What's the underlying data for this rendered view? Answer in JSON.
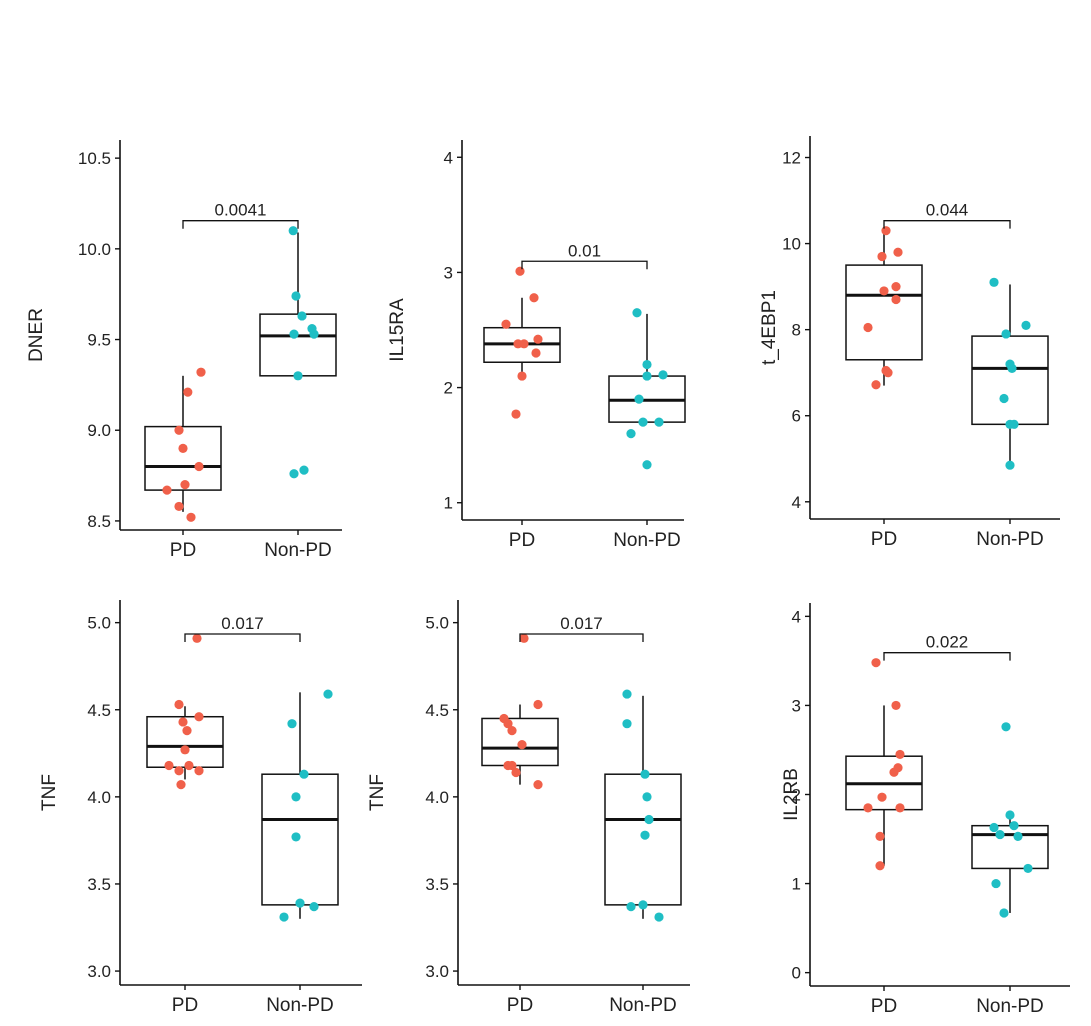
{
  "colors": {
    "pd": "#F0604A",
    "nonpd": "#1FBEC4",
    "line": "#111111",
    "text": "#222222"
  },
  "chart_data": [
    {
      "type": "box",
      "ylabel": "DNER",
      "categories": [
        "PD",
        "Non-PD"
      ],
      "ylim": [
        8.45,
        10.6
      ],
      "yticks": [
        "8.5",
        "9.0",
        "9.5",
        "10.0",
        "10.5"
      ],
      "pvalue": "0.0041",
      "boxes": [
        {
          "name": "PD",
          "q1": 8.67,
          "median": 8.8,
          "q3": 9.02,
          "whisker_low": 8.55,
          "whisker_high": 9.3,
          "points": [
            [
              -0.4,
              8.67
            ],
            [
              -0.1,
              8.58
            ],
            [
              0.2,
              8.52
            ],
            [
              -0.1,
              9.0
            ],
            [
              0.0,
              8.9
            ],
            [
              0.05,
              8.7
            ],
            [
              0.4,
              8.8
            ],
            [
              0.12,
              9.21
            ],
            [
              0.45,
              9.32
            ]
          ]
        },
        {
          "name": "Non-PD",
          "q1": 9.3,
          "median": 9.52,
          "q3": 9.64,
          "whisker_low": 9.3,
          "whisker_high": 10.09,
          "points": [
            [
              -0.12,
              10.1
            ],
            [
              -0.1,
              8.76
            ],
            [
              0.15,
              8.78
            ],
            [
              -0.05,
              9.74
            ],
            [
              -0.1,
              9.53
            ],
            [
              0.1,
              9.63
            ],
            [
              0.35,
              9.56
            ],
            [
              0.4,
              9.53
            ],
            [
              0.0,
              9.3
            ]
          ]
        }
      ]
    },
    {
      "type": "box",
      "ylabel": "IL15RA",
      "categories": [
        "PD",
        "Non-PD"
      ],
      "ylim": [
        0.85,
        4.15
      ],
      "yticks": [
        "1",
        "2",
        "3",
        "4"
      ],
      "pvalue": "0.01",
      "boxes": [
        {
          "name": "PD",
          "q1": 2.22,
          "median": 2.38,
          "q3": 2.52,
          "whisker_low": 2.1,
          "whisker_high": 2.78,
          "points": [
            [
              -0.4,
              2.55
            ],
            [
              -0.05,
              3.01
            ],
            [
              -0.1,
              2.38
            ],
            [
              0.0,
              2.1
            ],
            [
              0.05,
              2.38
            ],
            [
              0.3,
              2.78
            ],
            [
              0.35,
              2.3
            ],
            [
              -0.15,
              1.77
            ],
            [
              0.4,
              2.42
            ]
          ]
        },
        {
          "name": "Non-PD",
          "q1": 1.7,
          "median": 1.89,
          "q3": 2.1,
          "whisker_low": 1.7,
          "whisker_high": 2.64,
          "points": [
            [
              -0.4,
              1.6
            ],
            [
              -0.25,
              2.65
            ],
            [
              -0.1,
              1.7
            ],
            [
              -0.2,
              1.9
            ],
            [
              0.0,
              2.2
            ],
            [
              0.0,
              2.1
            ],
            [
              0.0,
              1.33
            ],
            [
              0.3,
              1.7
            ],
            [
              0.4,
              2.11
            ]
          ]
        }
      ]
    },
    {
      "type": "box",
      "ylabel": "t_4EBP1",
      "categories": [
        "PD",
        "Non-PD"
      ],
      "ylim": [
        3.6,
        12.5
      ],
      "yticks": [
        "4",
        "6",
        "8",
        "10",
        "12"
      ],
      "pvalue": "0.044",
      "boxes": [
        {
          "name": "PD",
          "q1": 7.3,
          "median": 8.8,
          "q3": 9.5,
          "whisker_low": 6.7,
          "whisker_high": 10.3,
          "points": [
            [
              -0.4,
              8.05
            ],
            [
              -0.05,
              9.7
            ],
            [
              0.05,
              10.3
            ],
            [
              0.0,
              8.9
            ],
            [
              0.35,
              9.8
            ],
            [
              0.3,
              9.0
            ],
            [
              0.3,
              8.7
            ],
            [
              0.05,
              7.05
            ],
            [
              0.1,
              7.0
            ],
            [
              -0.2,
              6.72
            ]
          ]
        },
        {
          "name": "Non-PD",
          "q1": 5.8,
          "median": 7.1,
          "q3": 7.85,
          "whisker_low": 4.85,
          "whisker_high": 9.05,
          "points": [
            [
              -0.4,
              9.1
            ],
            [
              -0.1,
              7.9
            ],
            [
              0.0,
              7.2
            ],
            [
              0.05,
              7.1
            ],
            [
              -0.15,
              6.4
            ],
            [
              0.0,
              5.8
            ],
            [
              0.1,
              5.8
            ],
            [
              0.0,
              4.85
            ],
            [
              0.4,
              8.1
            ]
          ]
        }
      ]
    },
    {
      "type": "box",
      "ylabel": "TNF",
      "categories": [
        "PD",
        "Non-PD"
      ],
      "ylim": [
        2.92,
        5.13
      ],
      "yticks": [
        "3.0",
        "3.5",
        "4.0",
        "4.5",
        "5.0"
      ],
      "pvalue": "0.017",
      "boxes": [
        {
          "name": "PD",
          "q1": 4.17,
          "median": 4.29,
          "q3": 4.46,
          "whisker_low": 4.1,
          "whisker_high": 4.52,
          "points": [
            [
              -0.4,
              4.18
            ],
            [
              -0.15,
              4.53
            ],
            [
              -0.05,
              4.43
            ],
            [
              0.05,
              4.38
            ],
            [
              0.0,
              4.27
            ],
            [
              -0.15,
              4.15
            ],
            [
              0.1,
              4.18
            ],
            [
              -0.1,
              4.07
            ],
            [
              0.35,
              4.46
            ],
            [
              0.35,
              4.15
            ],
            [
              0.3,
              4.91
            ]
          ]
        },
        {
          "name": "Non-PD",
          "q1": 3.38,
          "median": 3.87,
          "q3": 4.13,
          "whisker_low": 3.3,
          "whisker_high": 4.6,
          "points": [
            [
              -0.4,
              3.31
            ],
            [
              -0.2,
              4.42
            ],
            [
              -0.1,
              4.0
            ],
            [
              -0.1,
              3.77
            ],
            [
              0.1,
              4.13
            ],
            [
              0.0,
              3.39
            ],
            [
              0.35,
              3.37
            ],
            [
              0.7,
              4.59
            ]
          ]
        }
      ]
    },
    {
      "type": "box",
      "ylabel": "TNF",
      "categories": [
        "PD",
        "Non-PD"
      ],
      "ylim": [
        2.92,
        5.13
      ],
      "yticks": [
        "3.0",
        "3.5",
        "4.0",
        "4.5",
        "5.0"
      ],
      "pvalue": "0.017",
      "boxes": [
        {
          "name": "PD",
          "q1": 4.18,
          "median": 4.28,
          "q3": 4.45,
          "whisker_low": 4.07,
          "whisker_high": 4.53,
          "points": [
            [
              -0.4,
              4.45
            ],
            [
              -0.3,
              4.42
            ],
            [
              -0.2,
              4.38
            ],
            [
              0.05,
              4.3
            ],
            [
              -0.3,
              4.18
            ],
            [
              -0.2,
              4.18
            ],
            [
              -0.1,
              4.14
            ],
            [
              0.1,
              4.91
            ],
            [
              0.45,
              4.53
            ],
            [
              0.45,
              4.07
            ]
          ]
        },
        {
          "name": "Non-PD",
          "q1": 3.38,
          "median": 3.87,
          "q3": 4.13,
          "whisker_low": 3.3,
          "whisker_high": 4.58,
          "points": [
            [
              -0.4,
              4.59
            ],
            [
              -0.4,
              4.42
            ],
            [
              0.05,
              4.13
            ],
            [
              0.1,
              4.0
            ],
            [
              0.05,
              3.78
            ],
            [
              0.15,
              3.87
            ],
            [
              -0.3,
              3.37
            ],
            [
              0.0,
              3.38
            ],
            [
              0.4,
              3.31
            ]
          ]
        }
      ]
    },
    {
      "type": "box",
      "ylabel": "IL2RB",
      "categories": [
        "PD",
        "Non-PD"
      ],
      "ylim": [
        -0.15,
        4.15
      ],
      "yticks": [
        "0",
        "1",
        "2",
        "3",
        "4"
      ],
      "pvalue": "0.022",
      "boxes": [
        {
          "name": "PD",
          "q1": 1.83,
          "median": 2.12,
          "q3": 2.43,
          "whisker_low": 1.2,
          "whisker_high": 3.0,
          "points": [
            [
              -0.2,
              3.48
            ],
            [
              0.3,
              3.0
            ],
            [
              0.4,
              2.45
            ],
            [
              0.25,
              2.25
            ],
            [
              0.35,
              2.3
            ],
            [
              -0.05,
              1.97
            ],
            [
              -0.4,
              1.85
            ],
            [
              0.4,
              1.85
            ],
            [
              -0.1,
              1.53
            ],
            [
              -0.1,
              1.2
            ]
          ]
        },
        {
          "name": "Non-PD",
          "q1": 1.17,
          "median": 1.55,
          "q3": 1.65,
          "whisker_low": 0.67,
          "whisker_high": 1.77,
          "points": [
            [
              -0.1,
              2.76
            ],
            [
              -0.4,
              1.63
            ],
            [
              -0.25,
              1.55
            ],
            [
              0.0,
              1.77
            ],
            [
              0.1,
              1.65
            ],
            [
              0.2,
              1.53
            ],
            [
              -0.35,
              1.0
            ],
            [
              -0.15,
              0.67
            ],
            [
              0.45,
              1.17
            ]
          ]
        }
      ]
    }
  ]
}
